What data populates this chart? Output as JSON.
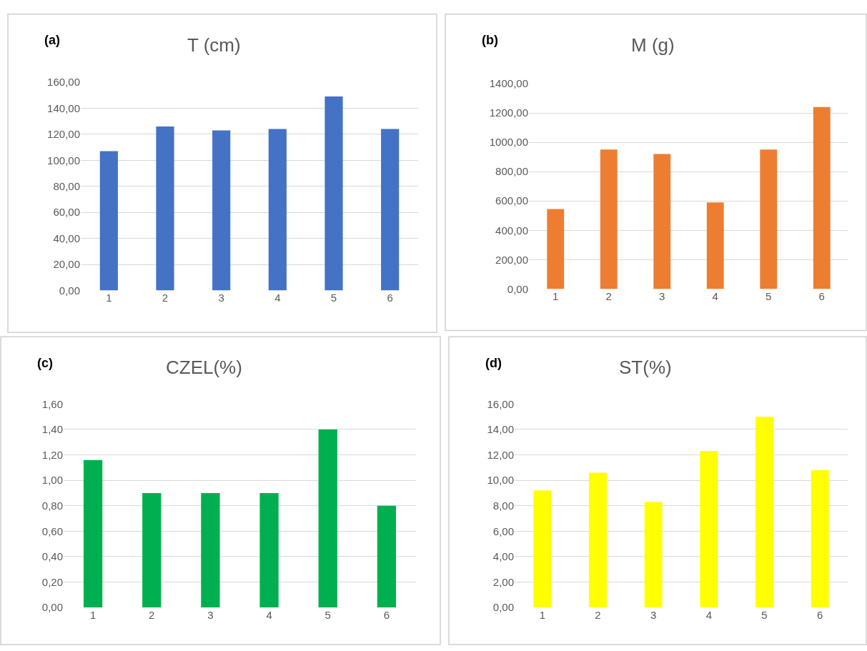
{
  "chart_data": [
    {
      "type": "bar",
      "title": "T (cm)",
      "annotations": [
        "(a)"
      ],
      "categories": [
        "1",
        "2",
        "3",
        "4",
        "5",
        "6"
      ],
      "values": [
        107,
        126,
        123,
        124,
        149,
        124
      ],
      "color": "#4472c4",
      "ylim": [
        0,
        160
      ],
      "yticks": [
        {
          "value": 0,
          "label": "0,00"
        },
        {
          "value": 20,
          "label": "20,00"
        },
        {
          "value": 40,
          "label": "40,00"
        },
        {
          "value": 60,
          "label": "60,00"
        },
        {
          "value": 80,
          "label": "80,00"
        },
        {
          "value": 100,
          "label": "100,00"
        },
        {
          "value": 120,
          "label": "120,00"
        },
        {
          "value": 140,
          "label": "140,00"
        },
        {
          "value": 160,
          "label": "160,00"
        }
      ],
      "grid": "y",
      "legend": false
    },
    {
      "type": "bar",
      "title": "M (g)",
      "annotations": [
        "(b)"
      ],
      "categories": [
        "1",
        "2",
        "3",
        "4",
        "5",
        "6"
      ],
      "values": [
        545,
        950,
        920,
        590,
        950,
        1240
      ],
      "color": "#ed7d31",
      "ylim": [
        0,
        1400
      ],
      "yticks": [
        {
          "value": 0,
          "label": "0,00"
        },
        {
          "value": 200,
          "label": "200,00"
        },
        {
          "value": 400,
          "label": "400,00"
        },
        {
          "value": 600,
          "label": "600,00"
        },
        {
          "value": 800,
          "label": "800,00"
        },
        {
          "value": 1000,
          "label": "1000,00"
        },
        {
          "value": 1200,
          "label": "1200,00"
        },
        {
          "value": 1400,
          "label": "1400,00"
        }
      ],
      "grid": "y",
      "legend": false
    },
    {
      "type": "bar",
      "title": "CZEL(%)",
      "annotations": [
        "(c)"
      ],
      "categories": [
        "1",
        "2",
        "3",
        "4",
        "5",
        "6"
      ],
      "values": [
        1.16,
        0.9,
        0.9,
        0.9,
        1.4,
        0.8
      ],
      "color": "#00b050",
      "ylim": [
        0,
        1.6
      ],
      "yticks": [
        {
          "value": 0,
          "label": "0,00"
        },
        {
          "value": 0.2,
          "label": "0,20"
        },
        {
          "value": 0.4,
          "label": "0,40"
        },
        {
          "value": 0.6,
          "label": "0,60"
        },
        {
          "value": 0.8,
          "label": "0,80"
        },
        {
          "value": 1.0,
          "label": "1,00"
        },
        {
          "value": 1.2,
          "label": "1,20"
        },
        {
          "value": 1.4,
          "label": "1,40"
        },
        {
          "value": 1.6,
          "label": "1,60"
        }
      ],
      "grid": "y",
      "legend": false
    },
    {
      "type": "bar",
      "title": "ST(%)",
      "annotations": [
        "(d)"
      ],
      "categories": [
        "1",
        "2",
        "3",
        "4",
        "5",
        "6"
      ],
      "values": [
        9.2,
        10.6,
        8.3,
        12.3,
        15.0,
        10.8
      ],
      "color": "#ffff00",
      "ylim": [
        0,
        16
      ],
      "yticks": [
        {
          "value": 0,
          "label": "0,00"
        },
        {
          "value": 2,
          "label": "2,00"
        },
        {
          "value": 4,
          "label": "4,00"
        },
        {
          "value": 6,
          "label": "6,00"
        },
        {
          "value": 8,
          "label": "8,00"
        },
        {
          "value": 10,
          "label": "10,00"
        },
        {
          "value": 12,
          "label": "12,00"
        },
        {
          "value": 14,
          "label": "14,00"
        },
        {
          "value": 16,
          "label": "16,00"
        }
      ],
      "grid": "y",
      "legend": false
    }
  ]
}
